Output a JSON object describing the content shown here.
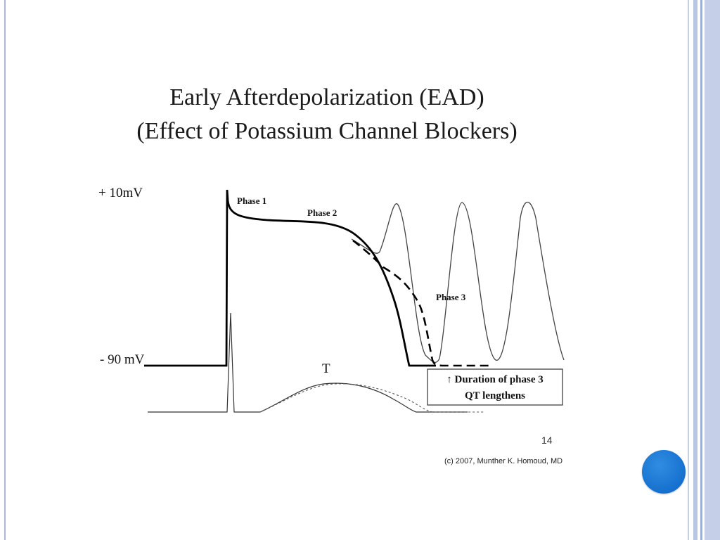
{
  "slide": {
    "title_line1": "Early Afterdepolarization (EAD)",
    "title_line2": "(Effect of Potassium Channel Blockers)",
    "page_number": "14",
    "copyright": "(c) 2007, Munther K. Homoud, MD"
  },
  "diagram": {
    "top_voltage": "+ 10mV",
    "bottom_voltage": "- 90 mV",
    "phase1": "Phase 1",
    "phase2": "Phase 2",
    "phase3": "Phase 3",
    "t_wave": "T",
    "box_line1": "↑ Duration of phase 3",
    "box_line2": "QT lengthens"
  },
  "colors": {
    "frame": "#a9b6d8",
    "nav_dot": "#1a73d8",
    "trace": "#000000"
  }
}
